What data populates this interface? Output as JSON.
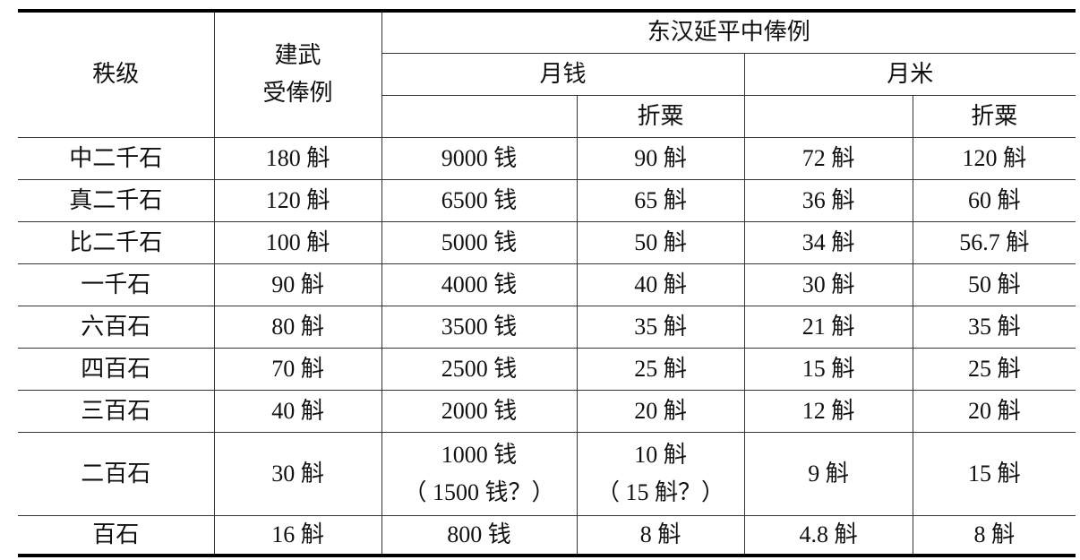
{
  "headers": {
    "rank": "秩级",
    "jianwu_1": "建武",
    "jianwu_2": "受俸例",
    "yanping": "东汉延平中俸例",
    "monthly_cash": "月钱",
    "monthly_rice": "月米",
    "converted_1": "折粟",
    "converted_2": "折粟"
  },
  "rows": [
    {
      "rank": "中二千石",
      "jianwu": "180 斛",
      "cash": "9000 钱",
      "cash_grain": "90 斛",
      "rice": "72 斛",
      "rice_grain": "120 斛"
    },
    {
      "rank": "真二千石",
      "jianwu": "120 斛",
      "cash": "6500 钱",
      "cash_grain": "65 斛",
      "rice": "36 斛",
      "rice_grain": "60 斛"
    },
    {
      "rank": "比二千石",
      "jianwu": "100 斛",
      "cash": "5000 钱",
      "cash_grain": "50 斛",
      "rice": "34 斛",
      "rice_grain": "56.7 斛"
    },
    {
      "rank": "一千石",
      "jianwu": "90 斛",
      "cash": "4000 钱",
      "cash_grain": "40 斛",
      "rice": "30 斛",
      "rice_grain": "50 斛"
    },
    {
      "rank": "六百石",
      "jianwu": "80 斛",
      "cash": "3500 钱",
      "cash_grain": "35 斛",
      "rice": "21 斛",
      "rice_grain": "35 斛"
    },
    {
      "rank": "四百石",
      "jianwu": "70 斛",
      "cash": "2500 钱",
      "cash_grain": "25 斛",
      "rice": "15 斛",
      "rice_grain": "25 斛"
    },
    {
      "rank": "三百石",
      "jianwu": "40 斛",
      "cash": "2000 钱",
      "cash_grain": "20 斛",
      "rice": "12 斛",
      "rice_grain": "20 斛"
    },
    {
      "rank": "二百石",
      "jianwu": "30 斛",
      "cash": "1000 钱",
      "cash_alt": "（ 1500 钱？）",
      "cash_grain": "10 斛",
      "cash_grain_alt": "（ 15 斛？）",
      "rice": "9 斛",
      "rice_grain": "15 斛"
    },
    {
      "rank": "百石",
      "jianwu": "16 斛",
      "cash": "800 钱",
      "cash_grain": "8 斛",
      "rice": "4.8 斛",
      "rice_grain": "8 斛"
    }
  ]
}
